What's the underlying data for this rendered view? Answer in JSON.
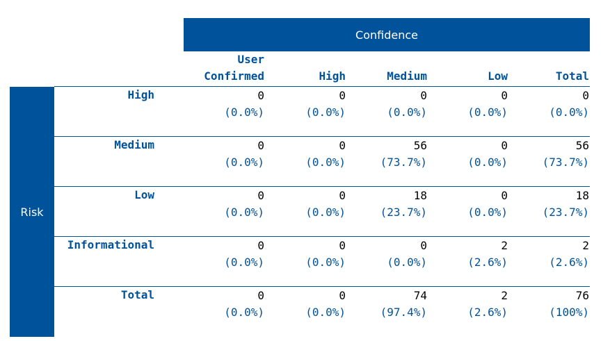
{
  "header": {
    "confidence_label": "Confidence",
    "risk_label": "Risk"
  },
  "columns": [
    {
      "line1": "User",
      "line2": "Confirmed"
    },
    {
      "line1": "",
      "line2": "High"
    },
    {
      "line1": "",
      "line2": "Medium"
    },
    {
      "line1": "",
      "line2": "Low"
    },
    {
      "line1": "",
      "line2": "Total"
    }
  ],
  "rows": [
    {
      "label": "High",
      "cells": [
        {
          "count": "0",
          "pct": "(0.0%)"
        },
        {
          "count": "0",
          "pct": "(0.0%)"
        },
        {
          "count": "0",
          "pct": "(0.0%)"
        },
        {
          "count": "0",
          "pct": "(0.0%)"
        },
        {
          "count": "0",
          "pct": "(0.0%)"
        }
      ]
    },
    {
      "label": "Medium",
      "cells": [
        {
          "count": "0",
          "pct": "(0.0%)"
        },
        {
          "count": "0",
          "pct": "(0.0%)"
        },
        {
          "count": "56",
          "pct": "(73.7%)"
        },
        {
          "count": "0",
          "pct": "(0.0%)"
        },
        {
          "count": "56",
          "pct": "(73.7%)"
        }
      ]
    },
    {
      "label": "Low",
      "cells": [
        {
          "count": "0",
          "pct": "(0.0%)"
        },
        {
          "count": "0",
          "pct": "(0.0%)"
        },
        {
          "count": "18",
          "pct": "(23.7%)"
        },
        {
          "count": "0",
          "pct": "(0.0%)"
        },
        {
          "count": "18",
          "pct": "(23.7%)"
        }
      ]
    },
    {
      "label": "Informational",
      "cells": [
        {
          "count": "0",
          "pct": "(0.0%)"
        },
        {
          "count": "0",
          "pct": "(0.0%)"
        },
        {
          "count": "0",
          "pct": "(0.0%)"
        },
        {
          "count": "2",
          "pct": "(2.6%)"
        },
        {
          "count": "2",
          "pct": "(2.6%)"
        }
      ]
    },
    {
      "label": "Total",
      "cells": [
        {
          "count": "0",
          "pct": "(0.0%)"
        },
        {
          "count": "0",
          "pct": "(0.0%)"
        },
        {
          "count": "74",
          "pct": "(97.4%)"
        },
        {
          "count": "2",
          "pct": "(2.6%)"
        },
        {
          "count": "76",
          "pct": "(100%)"
        }
      ]
    }
  ],
  "colors": {
    "accent": "#00529b"
  }
}
